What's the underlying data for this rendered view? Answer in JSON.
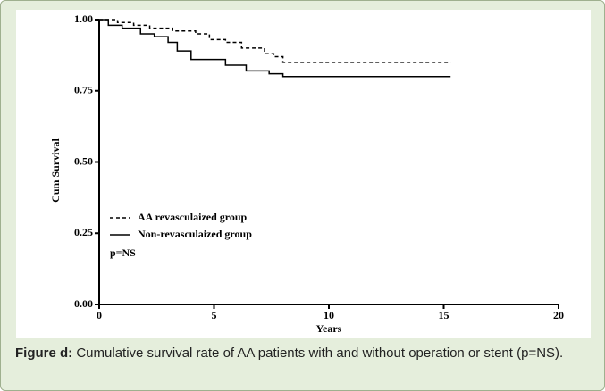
{
  "chart_data": {
    "type": "line",
    "step": true,
    "xlabel": "Years",
    "ylabel": "Cum Survival",
    "annotation": "p=NS",
    "caption_label": "Figure d:",
    "caption": "Cumulative survival rate of AA patients with and without operation or stent (p=NS).",
    "xlim": [
      0,
      20
    ],
    "xticks": [
      0,
      5,
      10,
      15,
      20
    ],
    "ylim": [
      0,
      1
    ],
    "yticks": [
      {
        "value": 0,
        "label": "0.00"
      },
      {
        "value": 0.25,
        "label": "0.25"
      },
      {
        "value": 0.5,
        "label": "0.50"
      },
      {
        "value": 0.75,
        "label": "0.75"
      },
      {
        "value": 1,
        "label": "1.00"
      }
    ],
    "series": [
      {
        "name": "AA revasculaized group",
        "color": "#000000",
        "dash": true,
        "x": [
          0,
          0.8,
          0.8,
          1.5,
          1.5,
          2.2,
          2.2,
          3.2,
          3.2,
          4.2,
          4.2,
          4.8,
          4.8,
          5.5,
          5.5,
          6.2,
          6.2,
          7.2,
          7.2,
          7.6,
          7.6,
          8.0,
          8.0,
          15.3
        ],
        "values": [
          1,
          1,
          0.99,
          0.99,
          0.98,
          0.98,
          0.97,
          0.97,
          0.96,
          0.96,
          0.95,
          0.95,
          0.93,
          0.93,
          0.92,
          0.92,
          0.9,
          0.9,
          0.88,
          0.88,
          0.87,
          0.87,
          0.85,
          0.85
        ]
      },
      {
        "name": "Non-revasculaized group",
        "color": "#000000",
        "dash": false,
        "x": [
          0,
          0.4,
          0.4,
          1.0,
          1.0,
          1.8,
          1.8,
          2.4,
          2.4,
          3.0,
          3.0,
          3.4,
          3.4,
          4.0,
          4.0,
          5.5,
          5.5,
          6.4,
          6.4,
          7.4,
          7.4,
          8.0,
          8.0,
          15.3
        ],
        "values": [
          1,
          1,
          0.98,
          0.98,
          0.97,
          0.97,
          0.95,
          0.95,
          0.94,
          0.94,
          0.92,
          0.92,
          0.89,
          0.89,
          0.86,
          0.86,
          0.84,
          0.84,
          0.82,
          0.82,
          0.81,
          0.81,
          0.8,
          0.8
        ]
      }
    ]
  }
}
